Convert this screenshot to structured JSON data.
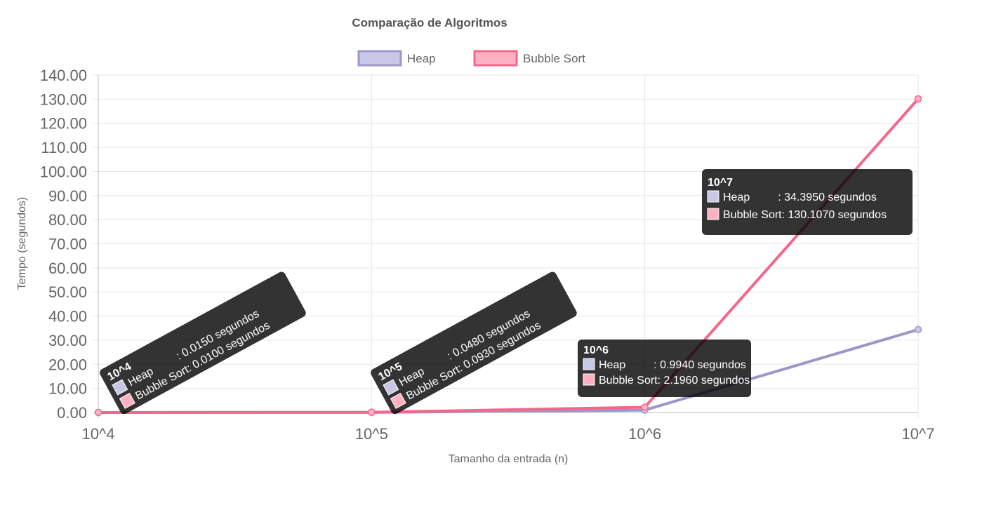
{
  "chart_data": {
    "type": "line",
    "title": "Comparação de Algoritmos",
    "xlabel": "Tamanho da entrada (n)",
    "ylabel": "Tempo (segundos)",
    "categories": [
      "10^4",
      "10^5",
      "10^6",
      "10^7"
    ],
    "ylim": [
      0,
      140
    ],
    "ystep": 10,
    "y_tick_decimals": 2,
    "grid": true,
    "legend_position": "top",
    "series": [
      {
        "name": "Heap",
        "values": [
          0.015,
          0.048,
          0.994,
          34.395
        ],
        "color": "#9b98c9",
        "fill": "#c9c7e6"
      },
      {
        "name": "Bubble Sort",
        "values": [
          0.01,
          0.093,
          2.196,
          130.107
        ],
        "color": "#f4678a",
        "fill": "#ffb1c2"
      }
    ],
    "tooltips": [
      {
        "title": "10^4",
        "lines": [
          "Heap         : 0.0150 segundos",
          "Bubble Sort: 0.0100 segundos"
        ]
      },
      {
        "title": "10^5",
        "lines": [
          "Heap         : 0.0480 segundos",
          "Bubble Sort: 0.0930 segundos"
        ]
      },
      {
        "title": "10^6",
        "lines": [
          "Heap         : 0.9940 segundos",
          "Bubble Sort: 2.1960 segundos"
        ]
      },
      {
        "title": "10^7",
        "lines": [
          "Heap         : 34.3950 segundos",
          "Bubble Sort: 130.1070 segundos"
        ]
      }
    ]
  }
}
